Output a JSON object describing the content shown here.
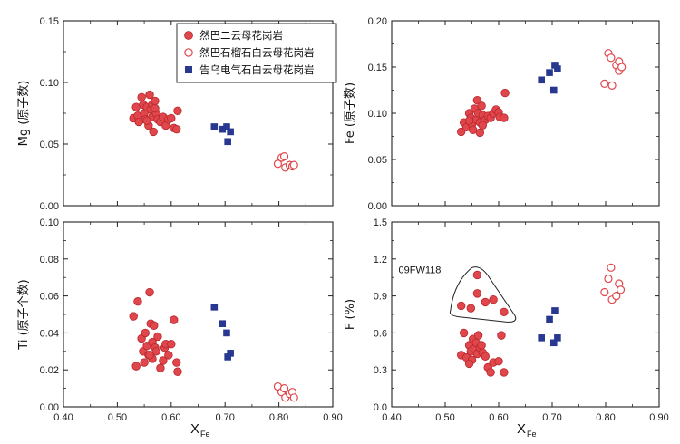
{
  "colors": {
    "red": "#e0474c",
    "red_edge": "#b8262b",
    "blue": "#283891"
  },
  "legend": {
    "items": [
      {
        "label": "然巴二云母花岗岩",
        "marker": "filled-circle"
      },
      {
        "label": "然巴石榴石白云母花岗岩",
        "marker": "open-circle"
      },
      {
        "label": "告乌电气石白云母花岗岩",
        "marker": "square"
      }
    ]
  },
  "x_axis": {
    "label_main": "X",
    "label_sub": "Fe"
  },
  "chart_data": [
    {
      "id": "mg",
      "type": "scatter",
      "ylabel": "Mg (原子数)",
      "xlim": [
        0.4,
        0.9
      ],
      "ylim": [
        0.0,
        0.15
      ],
      "xticks": [
        0.4,
        0.5,
        0.6,
        0.7,
        0.8,
        0.9
      ],
      "xtick_labels": [
        "",
        "",
        "",
        "",
        "",
        ""
      ],
      "yticks": [
        0.0,
        0.05,
        0.1,
        0.15
      ],
      "ytick_labels": [
        "0.00",
        "0.05",
        "0.10",
        "0.15"
      ],
      "series": [
        {
          "name": "然巴二云母花岗岩",
          "marker": "filled-circle",
          "points": [
            [
              0.53,
              0.071
            ],
            [
              0.535,
              0.08
            ],
            [
              0.538,
              0.073
            ],
            [
              0.54,
              0.068
            ],
            [
              0.545,
              0.088
            ],
            [
              0.548,
              0.082
            ],
            [
              0.55,
              0.075
            ],
            [
              0.552,
              0.07
            ],
            [
              0.555,
              0.08
            ],
            [
              0.558,
              0.065
            ],
            [
              0.56,
              0.09
            ],
            [
              0.562,
              0.078
            ],
            [
              0.565,
              0.082
            ],
            [
              0.565,
              0.072
            ],
            [
              0.567,
              0.06
            ],
            [
              0.57,
              0.085
            ],
            [
              0.572,
              0.075
            ],
            [
              0.575,
              0.07
            ],
            [
              0.58,
              0.068
            ],
            [
              0.585,
              0.072
            ],
            [
              0.59,
              0.065
            ],
            [
              0.595,
              0.07
            ],
            [
              0.6,
              0.071
            ],
            [
              0.605,
              0.063
            ],
            [
              0.61,
              0.062
            ],
            [
              0.612,
              0.077
            ],
            [
              0.57,
              0.079
            ],
            [
              0.555,
              0.069
            ]
          ]
        },
        {
          "name": "然巴石榴石白云母花岗岩",
          "marker": "open-circle",
          "points": [
            [
              0.798,
              0.034
            ],
            [
              0.805,
              0.039
            ],
            [
              0.81,
              0.04
            ],
            [
              0.812,
              0.031
            ],
            [
              0.82,
              0.033
            ],
            [
              0.825,
              0.032
            ],
            [
              0.828,
              0.033
            ]
          ]
        },
        {
          "name": "告乌电气石白云母花岗岩",
          "marker": "square",
          "points": [
            [
              0.68,
              0.064
            ],
            [
              0.695,
              0.062
            ],
            [
              0.703,
              0.064
            ],
            [
              0.705,
              0.052
            ],
            [
              0.71,
              0.06
            ]
          ]
        }
      ]
    },
    {
      "id": "fe",
      "type": "scatter",
      "ylabel": "Fe (原子数)",
      "xlim": [
        0.4,
        0.9
      ],
      "ylim": [
        0.0,
        0.2
      ],
      "xticks": [
        0.4,
        0.5,
        0.6,
        0.7,
        0.8,
        0.9
      ],
      "xtick_labels": [
        "",
        "",
        "",
        "",
        "",
        ""
      ],
      "yticks": [
        0.0,
        0.05,
        0.1,
        0.15,
        0.2
      ],
      "ytick_labels": [
        "0.00",
        "0.05",
        "0.10",
        "0.15",
        "0.20"
      ],
      "series": [
        {
          "name": "然巴二云母花岗岩",
          "marker": "filled-circle",
          "points": [
            [
              0.53,
              0.08
            ],
            [
              0.535,
              0.09
            ],
            [
              0.54,
              0.085
            ],
            [
              0.545,
              0.1
            ],
            [
              0.548,
              0.095
            ],
            [
              0.55,
              0.088
            ],
            [
              0.552,
              0.082
            ],
            [
              0.555,
              0.105
            ],
            [
              0.558,
              0.093
            ],
            [
              0.56,
              0.114
            ],
            [
              0.562,
              0.1
            ],
            [
              0.565,
              0.09
            ],
            [
              0.565,
              0.079
            ],
            [
              0.568,
              0.108
            ],
            [
              0.57,
              0.098
            ],
            [
              0.575,
              0.093
            ],
            [
              0.58,
              0.097
            ],
            [
              0.585,
              0.095
            ],
            [
              0.59,
              0.1
            ],
            [
              0.595,
              0.104
            ],
            [
              0.6,
              0.101
            ],
            [
              0.602,
              0.096
            ],
            [
              0.61,
              0.095
            ],
            [
              0.612,
              0.122
            ],
            [
              0.57,
              0.087
            ],
            [
              0.545,
              0.092
            ]
          ]
        },
        {
          "name": "然巴石榴石白云母花岗岩",
          "marker": "open-circle",
          "points": [
            [
              0.798,
              0.132
            ],
            [
              0.805,
              0.165
            ],
            [
              0.81,
              0.16
            ],
            [
              0.812,
              0.13
            ],
            [
              0.82,
              0.152
            ],
            [
              0.825,
              0.156
            ],
            [
              0.825,
              0.146
            ],
            [
              0.83,
              0.15
            ]
          ]
        },
        {
          "name": "告乌电气石白云母花岗岩",
          "marker": "square",
          "points": [
            [
              0.68,
              0.136
            ],
            [
              0.695,
              0.144
            ],
            [
              0.703,
              0.125
            ],
            [
              0.705,
              0.152
            ],
            [
              0.71,
              0.148
            ]
          ]
        }
      ]
    },
    {
      "id": "ti",
      "type": "scatter",
      "ylabel": "Ti (原子个数)",
      "xlim": [
        0.4,
        0.9
      ],
      "ylim": [
        0.0,
        0.1
      ],
      "xticks": [
        0.4,
        0.5,
        0.6,
        0.7,
        0.8,
        0.9
      ],
      "xtick_labels": [
        "0.40",
        "0.50",
        "0.60",
        "0.70",
        "0.80",
        "0.90"
      ],
      "yticks": [
        0.0,
        0.02,
        0.04,
        0.06,
        0.08,
        0.1
      ],
      "ytick_labels": [
        "0.00",
        "0.02",
        "0.04",
        "0.06",
        "0.08",
        "0.10"
      ],
      "series": [
        {
          "name": "然巴二云母花岗岩",
          "marker": "filled-circle",
          "points": [
            [
              0.53,
              0.049
            ],
            [
              0.535,
              0.022
            ],
            [
              0.538,
              0.057
            ],
            [
              0.545,
              0.037
            ],
            [
              0.548,
              0.03
            ],
            [
              0.55,
              0.024
            ],
            [
              0.552,
              0.04
            ],
            [
              0.555,
              0.033
            ],
            [
              0.558,
              0.028
            ],
            [
              0.56,
              0.062
            ],
            [
              0.562,
              0.045
            ],
            [
              0.565,
              0.035
            ],
            [
              0.565,
              0.026
            ],
            [
              0.568,
              0.044
            ],
            [
              0.57,
              0.032
            ],
            [
              0.572,
              0.03
            ],
            [
              0.575,
              0.038
            ],
            [
              0.58,
              0.021
            ],
            [
              0.585,
              0.025
            ],
            [
              0.588,
              0.032
            ],
            [
              0.59,
              0.034
            ],
            [
              0.595,
              0.028
            ],
            [
              0.6,
              0.034
            ],
            [
              0.605,
              0.047
            ],
            [
              0.61,
              0.024
            ],
            [
              0.612,
              0.019
            ],
            [
              0.56,
              0.028
            ]
          ]
        },
        {
          "name": "然巴石榴石白云母花岗岩",
          "marker": "open-circle",
          "points": [
            [
              0.798,
              0.011
            ],
            [
              0.805,
              0.008
            ],
            [
              0.81,
              0.01
            ],
            [
              0.812,
              0.005
            ],
            [
              0.82,
              0.007
            ],
            [
              0.825,
              0.008
            ],
            [
              0.828,
              0.005
            ]
          ]
        },
        {
          "name": "告乌电气石白云母花岗岩",
          "marker": "square",
          "points": [
            [
              0.68,
              0.054
            ],
            [
              0.695,
              0.045
            ],
            [
              0.703,
              0.04
            ],
            [
              0.705,
              0.027
            ],
            [
              0.71,
              0.029
            ]
          ]
        }
      ]
    },
    {
      "id": "f",
      "type": "scatter",
      "ylabel": "F (%)",
      "xlim": [
        0.4,
        0.9
      ],
      "ylim": [
        0.0,
        1.5
      ],
      "xticks": [
        0.4,
        0.5,
        0.6,
        0.7,
        0.8,
        0.9
      ],
      "xtick_labels": [
        "0.40",
        "0.50",
        "0.60",
        "0.70",
        "0.80",
        "0.90"
      ],
      "yticks": [
        0.0,
        0.3,
        0.6,
        0.9,
        1.2,
        1.5
      ],
      "ytick_labels": [
        "0.0",
        "0.3",
        "0.6",
        "0.9",
        "1.2",
        "1.5"
      ],
      "annotation": {
        "label": "09FW118",
        "encloses": [
          [
            0.53,
            0.82
          ],
          [
            0.56,
            1.07
          ],
          [
            0.61,
            0.77
          ]
        ]
      },
      "series": [
        {
          "name": "然巴二云母花岗岩",
          "marker": "filled-circle",
          "points": [
            [
              0.53,
              0.82
            ],
            [
              0.548,
              0.8
            ],
            [
              0.56,
              1.07
            ],
            [
              0.56,
              0.92
            ],
            [
              0.575,
              0.85
            ],
            [
              0.59,
              0.87
            ],
            [
              0.61,
              0.77
            ],
            [
              0.53,
              0.42
            ],
            [
              0.535,
              0.6
            ],
            [
              0.54,
              0.4
            ],
            [
              0.545,
              0.5
            ],
            [
              0.548,
              0.45
            ],
            [
              0.55,
              0.38
            ],
            [
              0.552,
              0.55
            ],
            [
              0.555,
              0.47
            ],
            [
              0.558,
              0.52
            ],
            [
              0.56,
              0.43
            ],
            [
              0.562,
              0.58
            ],
            [
              0.565,
              0.48
            ],
            [
              0.568,
              0.5
            ],
            [
              0.57,
              0.44
            ],
            [
              0.575,
              0.41
            ],
            [
              0.58,
              0.32
            ],
            [
              0.585,
              0.28
            ],
            [
              0.59,
              0.36
            ],
            [
              0.6,
              0.37
            ],
            [
              0.605,
              0.58
            ],
            [
              0.61,
              0.28
            ],
            [
              0.545,
              0.35
            ]
          ]
        },
        {
          "name": "然巴石榴石白云母花岗岩",
          "marker": "open-circle",
          "points": [
            [
              0.798,
              0.93
            ],
            [
              0.805,
              1.04
            ],
            [
              0.81,
              1.13
            ],
            [
              0.812,
              0.87
            ],
            [
              0.82,
              0.9
            ],
            [
              0.825,
              1.0
            ],
            [
              0.828,
              0.95
            ]
          ]
        },
        {
          "name": "告乌电气石白云母花岗岩",
          "marker": "square",
          "points": [
            [
              0.68,
              0.56
            ],
            [
              0.695,
              0.71
            ],
            [
              0.703,
              0.52
            ],
            [
              0.705,
              0.78
            ],
            [
              0.71,
              0.56
            ]
          ]
        }
      ]
    }
  ]
}
